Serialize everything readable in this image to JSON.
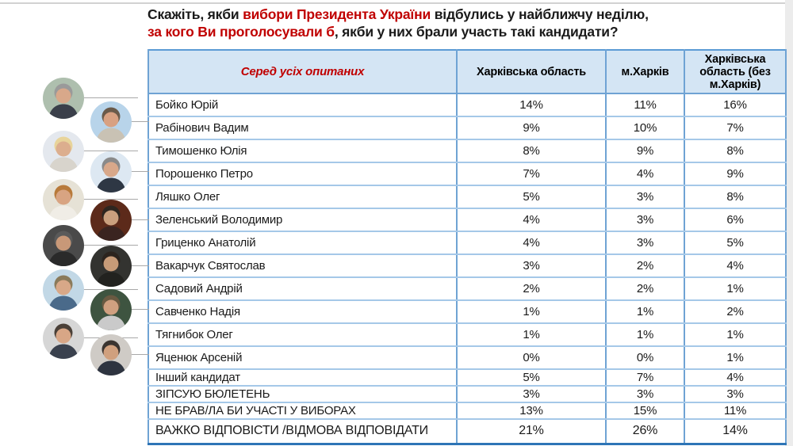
{
  "title": {
    "line1_segments": [
      {
        "text": "Скажіть, якби ",
        "red": false
      },
      {
        "text": "вибори Президента України",
        "red": true
      },
      {
        "text": " відбулись у найближчу неділю,",
        "red": false
      }
    ],
    "line2_segments": [
      {
        "text": "за кого Ви проголосували б",
        "red": true
      },
      {
        "text": ", якби у них брали участь такі кандидати?",
        "red": false
      }
    ]
  },
  "colors": {
    "accent_red": "#c00000",
    "table_outer_border": "#5b9bd5",
    "table_vertical_border": "#6fa3d4",
    "table_row_line": "#a5c8e8",
    "table_bottom_border": "#2e75b6",
    "header_bg": "#d4e5f4",
    "connector_line": "#a8a8a8"
  },
  "table": {
    "header": {
      "among_all": "Серед усіх опитаних",
      "col_oblast": "Харківська область",
      "col_city": "м.Харків",
      "col_oblast_wo_city": "Харківська область (без м.Харків)"
    },
    "rows": [
      {
        "label": "Бойко Юрій",
        "oblast": "14%",
        "city": "11%",
        "oblast_wo_city": "16%"
      },
      {
        "label": "Рабінович Вадим",
        "oblast": "9%",
        "city": "10%",
        "oblast_wo_city": "7%"
      },
      {
        "label": "Тимошенко Юлія",
        "oblast": "8%",
        "city": "9%",
        "oblast_wo_city": "8%"
      },
      {
        "label": "Порошенко Петро",
        "oblast": "7%",
        "city": "4%",
        "oblast_wo_city": "9%"
      },
      {
        "label": "Ляшко Олег",
        "oblast": "5%",
        "city": "3%",
        "oblast_wo_city": "8%"
      },
      {
        "label": "Зеленський Володимир",
        "oblast": "4%",
        "city": "3%",
        "oblast_wo_city": "6%"
      },
      {
        "label": "Гриценко Анатолій",
        "oblast": "4%",
        "city": "3%",
        "oblast_wo_city": "5%"
      },
      {
        "label": "Вакарчук Святослав",
        "oblast": "3%",
        "city": "2%",
        "oblast_wo_city": "4%"
      },
      {
        "label": "Садовий Андрій",
        "oblast": "2%",
        "city": "2%",
        "oblast_wo_city": "1%"
      },
      {
        "label": "Савченко Надія",
        "oblast": "1%",
        "city": "1%",
        "oblast_wo_city": "2%"
      },
      {
        "label": "Тягнибок Олег",
        "oblast": "1%",
        "city": "1%",
        "oblast_wo_city": "1%"
      },
      {
        "label": "Яценюк Арсеній",
        "oblast": "0%",
        "city": "0%",
        "oblast_wo_city": "1%"
      },
      {
        "label": "Інший кандидат",
        "oblast": "5%",
        "city": "7%",
        "oblast_wo_city": "4%"
      },
      {
        "label": "ЗІПСУЮ БЮЛЕТЕНЬ",
        "oblast": "3%",
        "city": "3%",
        "oblast_wo_city": "3%"
      },
      {
        "label": "НЕ БРАВ/ЛА БИ УЧАСТІ У ВИБОРАХ",
        "oblast": "13%",
        "city": "15%",
        "oblast_wo_city": "11%"
      },
      {
        "label": "ВАЖКО ВІДПОВІСТИ /ВІДМОВА ВІДПОВІДАТИ",
        "oblast": "21%",
        "city": "26%",
        "oblast_wo_city": "14%"
      }
    ]
  },
  "photos": [
    {
      "person": "boyko",
      "column": "left",
      "bg": "#aebfae",
      "hair": "#9a9a9a",
      "skin": "#d8a88a",
      "suit": "#3a3f4a"
    },
    {
      "person": "rabinovych",
      "column": "right",
      "bg": "#b8d4ea",
      "hair": "#6a5a4a",
      "skin": "#d8a182",
      "suit": "#c9c2b4"
    },
    {
      "person": "tymoshenko",
      "column": "left",
      "bg": "#e4e8ee",
      "hair": "#e8d49a",
      "skin": "#dcae8e",
      "suit": "#d8d4cc"
    },
    {
      "person": "poroshenko",
      "column": "right",
      "bg": "#dde8f2",
      "hair": "#8a8a8a",
      "skin": "#d8a88a",
      "suit": "#2e3744"
    },
    {
      "person": "lyashko",
      "column": "left",
      "bg": "#e6e2d6",
      "hair": "#b87a3a",
      "skin": "#d8a482",
      "suit": "#f0ede6"
    },
    {
      "person": "zelenskyi",
      "column": "right",
      "bg": "#5c2a1a",
      "hair": "#2e2620",
      "skin": "#caa07e",
      "suit": "#3a2420"
    },
    {
      "person": "hrytsenko",
      "column": "left",
      "bg": "#4a4a4a",
      "hair": "#5a5a5a",
      "skin": "#c89878",
      "suit": "#2a2a2a"
    },
    {
      "person": "vakarchuk",
      "column": "right",
      "bg": "#333330",
      "hair": "#2c241e",
      "skin": "#c79b78",
      "suit": "#22221f"
    },
    {
      "person": "sadovyi",
      "column": "left",
      "bg": "#c2d8e6",
      "hair": "#8a7a5a",
      "skin": "#d8a888",
      "suit": "#4a6a8a"
    },
    {
      "person": "savchenko",
      "column": "right",
      "bg": "#3e5440",
      "hair": "#6a5a42",
      "skin": "#d0a080",
      "suit": "#cacaca"
    },
    {
      "person": "tiahnybok",
      "column": "left",
      "bg": "#d6d6d6",
      "hair": "#4a4038",
      "skin": "#d8a686",
      "suit": "#3a414e"
    },
    {
      "person": "yatsenyuk",
      "column": "right",
      "bg": "#cfcbc6",
      "hair": "#3a3430",
      "skin": "#d0a07e",
      "suit": "#2e3440"
    }
  ],
  "chart_data": {
    "type": "table",
    "title": "Скажіть, якби вибори Президента України відбулись у найближчу неділю, за кого Ви проголосували б, якби у них брали участь такі кандидати?",
    "subtitle": "Серед усіх опитаних",
    "columns": [
      "Харківська область",
      "м.Харків",
      "Харківська область (без м.Харків)"
    ],
    "categories": [
      "Бойко Юрій",
      "Рабінович Вадим",
      "Тимошенко Юлія",
      "Порошенко Петро",
      "Ляшко Олег",
      "Зеленський Володимир",
      "Гриценко Анатолій",
      "Вакарчук Святослав",
      "Садовий Андрій",
      "Савченко Надія",
      "Тягнибок Олег",
      "Яценюк Арсеній",
      "Інший кандидат",
      "ЗІПСУЮ БЮЛЕТЕНЬ",
      "НЕ БРАВ/ЛА БИ УЧАСТІ У ВИБОРАХ",
      "ВАЖКО ВІДПОВІСТИ /ВІДМОВА ВІДПОВІДАТИ"
    ],
    "series": [
      {
        "name": "Харківська область",
        "values": [
          14,
          9,
          8,
          7,
          5,
          4,
          4,
          3,
          2,
          1,
          1,
          0,
          5,
          3,
          13,
          21
        ],
        "unit": "%"
      },
      {
        "name": "м.Харків",
        "values": [
          11,
          10,
          9,
          4,
          3,
          3,
          3,
          2,
          2,
          1,
          1,
          0,
          7,
          3,
          15,
          26
        ],
        "unit": "%"
      },
      {
        "name": "Харківська область (без м.Харків)",
        "values": [
          16,
          7,
          8,
          9,
          8,
          6,
          5,
          4,
          1,
          2,
          1,
          1,
          4,
          3,
          11,
          14
        ],
        "unit": "%"
      }
    ]
  }
}
